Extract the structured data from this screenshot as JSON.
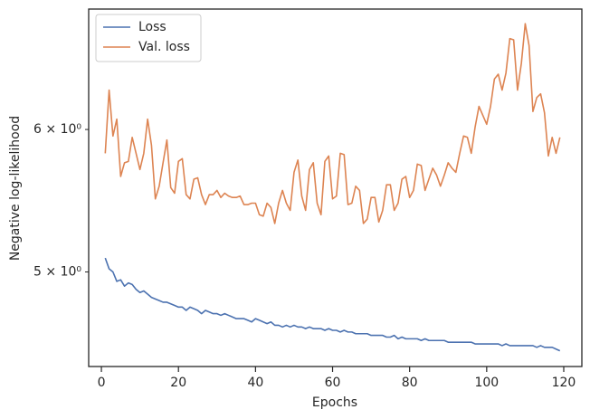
{
  "chart_data": {
    "type": "line",
    "xlabel": "Epochs",
    "ylabel": "Negative log-likelihood",
    "log_y": true,
    "grid": false,
    "legend": "upper left",
    "xlim": [
      -3.3,
      124.7
    ],
    "ylim": [
      4.43,
      7.0
    ],
    "xticks": [
      0,
      20,
      40,
      60,
      80,
      100,
      120
    ],
    "yticks": [
      {
        "value": 5,
        "label": "5 × 10⁰"
      },
      {
        "value": 6,
        "label": "6 × 10⁰"
      }
    ],
    "x": [
      1,
      2,
      3,
      4,
      5,
      6,
      7,
      8,
      9,
      10,
      11,
      12,
      13,
      14,
      15,
      16,
      17,
      18,
      19,
      20,
      21,
      22,
      23,
      24,
      25,
      26,
      27,
      28,
      29,
      30,
      31,
      32,
      33,
      34,
      35,
      36,
      37,
      38,
      39,
      40,
      41,
      42,
      43,
      44,
      45,
      46,
      47,
      48,
      49,
      50,
      51,
      52,
      53,
      54,
      55,
      56,
      57,
      58,
      59,
      60,
      61,
      62,
      63,
      64,
      65,
      66,
      67,
      68,
      69,
      70,
      71,
      72,
      73,
      74,
      75,
      76,
      77,
      78,
      79,
      80,
      81,
      82,
      83,
      84,
      85,
      86,
      87,
      88,
      89,
      90,
      91,
      92,
      93,
      94,
      95,
      96,
      97,
      98,
      99,
      100,
      101,
      102,
      103,
      104,
      105,
      106,
      107,
      108,
      109,
      110,
      111,
      112,
      113,
      114,
      115,
      116,
      117,
      118,
      119
    ],
    "series": [
      {
        "name": "Loss",
        "color": "#4c72b0",
        "values": [
          5.09,
          5.02,
          5.0,
          4.94,
          4.95,
          4.91,
          4.93,
          4.92,
          4.89,
          4.87,
          4.88,
          4.86,
          4.84,
          4.83,
          4.82,
          4.81,
          4.81,
          4.8,
          4.79,
          4.78,
          4.78,
          4.76,
          4.78,
          4.77,
          4.76,
          4.74,
          4.76,
          4.75,
          4.74,
          4.74,
          4.73,
          4.74,
          4.73,
          4.72,
          4.71,
          4.71,
          4.71,
          4.7,
          4.69,
          4.71,
          4.7,
          4.69,
          4.68,
          4.69,
          4.67,
          4.67,
          4.66,
          4.67,
          4.66,
          4.67,
          4.66,
          4.66,
          4.65,
          4.66,
          4.65,
          4.65,
          4.65,
          4.64,
          4.65,
          4.64,
          4.64,
          4.63,
          4.64,
          4.63,
          4.63,
          4.62,
          4.62,
          4.62,
          4.62,
          4.61,
          4.61,
          4.61,
          4.61,
          4.6,
          4.6,
          4.61,
          4.59,
          4.6,
          4.59,
          4.59,
          4.59,
          4.59,
          4.58,
          4.59,
          4.58,
          4.58,
          4.58,
          4.58,
          4.58,
          4.57,
          4.57,
          4.57,
          4.57,
          4.57,
          4.57,
          4.57,
          4.56,
          4.56,
          4.56,
          4.56,
          4.56,
          4.56,
          4.56,
          4.55,
          4.56,
          4.55,
          4.55,
          4.55,
          4.55,
          4.55,
          4.55,
          4.55,
          4.54,
          4.55,
          4.54,
          4.54,
          4.54,
          4.53,
          4.52
        ]
      },
      {
        "name": "Val. loss",
        "color": "#dd8452",
        "values": [
          5.82,
          6.31,
          5.95,
          6.08,
          5.65,
          5.75,
          5.76,
          5.94,
          5.82,
          5.7,
          5.82,
          6.08,
          5.88,
          5.49,
          5.58,
          5.75,
          5.92,
          5.57,
          5.53,
          5.76,
          5.78,
          5.52,
          5.49,
          5.63,
          5.64,
          5.52,
          5.45,
          5.52,
          5.52,
          5.55,
          5.5,
          5.53,
          5.51,
          5.5,
          5.5,
          5.51,
          5.45,
          5.45,
          5.46,
          5.46,
          5.38,
          5.37,
          5.46,
          5.43,
          5.32,
          5.46,
          5.55,
          5.46,
          5.41,
          5.68,
          5.77,
          5.51,
          5.41,
          5.7,
          5.75,
          5.46,
          5.38,
          5.76,
          5.8,
          5.49,
          5.51,
          5.82,
          5.81,
          5.45,
          5.46,
          5.58,
          5.55,
          5.32,
          5.35,
          5.5,
          5.5,
          5.33,
          5.41,
          5.59,
          5.59,
          5.41,
          5.46,
          5.63,
          5.65,
          5.5,
          5.55,
          5.74,
          5.73,
          5.55,
          5.63,
          5.71,
          5.66,
          5.58,
          5.66,
          5.75,
          5.71,
          5.68,
          5.82,
          5.95,
          5.94,
          5.82,
          6.02,
          6.18,
          6.11,
          6.04,
          6.18,
          6.4,
          6.44,
          6.31,
          6.45,
          6.74,
          6.73,
          6.31,
          6.53,
          6.87,
          6.68,
          6.14,
          6.25,
          6.28,
          6.13,
          5.8,
          5.94,
          5.82,
          5.94
        ]
      }
    ]
  }
}
